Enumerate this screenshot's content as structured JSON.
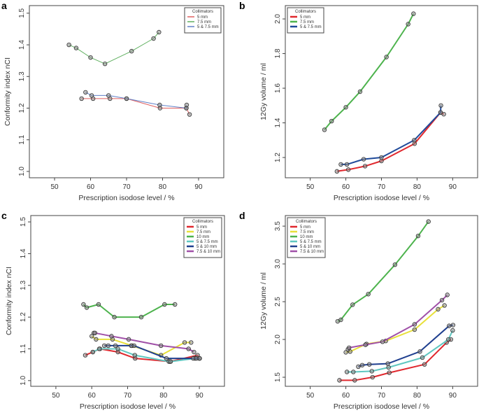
{
  "chart_data": [
    {
      "panel": "a",
      "type": "line",
      "xlabel": "Prescription isodose level / %",
      "ylabel": "Conformity index nCI",
      "xlim": [
        43,
        97
      ],
      "ylim": [
        0.98,
        1.524
      ],
      "xticks": [
        50,
        60,
        70,
        80,
        90
      ],
      "yticks": [
        1.0,
        1.1,
        1.2,
        1.3,
        1.4,
        1.5
      ],
      "ytick_labels": [
        "1.0",
        "1.1",
        "1.2",
        "1.3",
        "1.4",
        "1.5"
      ],
      "grid": false,
      "legend_title": "Collimators",
      "legend_position": "top-right",
      "series": [
        {
          "name": "5 mm",
          "color": "#e06060",
          "x": [
            57.5,
            60.7,
            65.4,
            70,
            79.3,
            86.6,
            87.5
          ],
          "y": [
            1.23,
            1.23,
            1.23,
            1.23,
            1.2,
            1.2,
            1.18
          ]
        },
        {
          "name": "7.5 mm",
          "color": "#60b060",
          "x": [
            54,
            56,
            60,
            64,
            71.4,
            77.5,
            79
          ],
          "y": [
            1.4,
            1.39,
            1.36,
            1.34,
            1.38,
            1.42,
            1.44
          ]
        },
        {
          "name": "5 & 7.5 mm",
          "color": "#6080c8",
          "x": [
            58.6,
            60.3,
            65,
            70,
            79.2,
            86.6,
            86.7
          ],
          "y": [
            1.25,
            1.24,
            1.24,
            1.23,
            1.21,
            1.2,
            1.21
          ]
        }
      ]
    },
    {
      "panel": "b",
      "type": "line",
      "xlabel": "Prescription isodose level / %",
      "ylabel": "12Gy volume / ml",
      "xlim": [
        43,
        97
      ],
      "ylim": [
        1.083,
        2.077
      ],
      "xticks": [
        50,
        60,
        70,
        80,
        90
      ],
      "yticks": [
        1.2,
        1.4,
        1.6,
        1.8,
        2.0
      ],
      "ytick_labels": [
        "1.2",
        "1.4",
        "1.6",
        "1.8",
        "2.0"
      ],
      "grid": false,
      "legend_title": "Collimators",
      "legend_position": "top-left",
      "series": [
        {
          "name": "5 mm",
          "color": "#e0282e",
          "x": [
            57.5,
            60.7,
            65.4,
            70,
            79.3,
            86.6,
            87.5
          ],
          "y": [
            1.12,
            1.13,
            1.15,
            1.18,
            1.28,
            1.46,
            1.45
          ]
        },
        {
          "name": "7.5 mm",
          "color": "#4db34d",
          "x": [
            54,
            56,
            60,
            64,
            71.4,
            77.5,
            79
          ],
          "y": [
            1.36,
            1.41,
            1.49,
            1.58,
            1.78,
            1.97,
            2.03
          ]
        },
        {
          "name": "5 & 7.5 mm",
          "color": "#1f4a9a",
          "x": [
            58.6,
            60.3,
            65,
            70,
            79.2,
            86.6,
            86.7
          ],
          "y": [
            1.16,
            1.16,
            1.19,
            1.2,
            1.3,
            1.46,
            1.5
          ]
        }
      ]
    },
    {
      "panel": "c",
      "type": "line",
      "xlabel": "Prescription isodose level / %",
      "ylabel": "Conformity index nCI",
      "xlim": [
        43,
        97
      ],
      "ylim": [
        0.982,
        1.52
      ],
      "xticks": [
        50,
        60,
        70,
        80,
        90
      ],
      "yticks": [
        1.0,
        1.1,
        1.2,
        1.3,
        1.4,
        1.5
      ],
      "ytick_labels": [
        "1.0",
        "1.1",
        "1.2",
        "1.3",
        "1.4",
        "1.5"
      ],
      "grid": false,
      "legend_title": "Collimators",
      "legend_position": "top-right",
      "series": [
        {
          "name": "5 mm",
          "color": "#e0282e",
          "x": [
            58.2,
            60.3,
            62.3,
            67.3,
            72.1,
            81.8,
            89.5,
            90
          ],
          "y": [
            1.08,
            1.09,
            1.1,
            1.09,
            1.07,
            1.06,
            1.08,
            1.07
          ]
        },
        {
          "name": "7.5 mm",
          "color": "#e8e03a",
          "x": [
            60,
            61.2,
            65.8,
            71.2,
            79.3,
            85.9,
            87.7
          ],
          "y": [
            1.14,
            1.13,
            1.13,
            1.11,
            1.08,
            1.12,
            1.12
          ]
        },
        {
          "name": "10 mm",
          "color": "#4db34d",
          "x": [
            57.7,
            58.6,
            61.9,
            66.3,
            73.8,
            80.3,
            83.2
          ],
          "y": [
            1.24,
            1.23,
            1.24,
            1.2,
            1.2,
            1.24,
            1.24
          ]
        },
        {
          "name": "5 & 7.5 mm",
          "color": "#5fc7c0",
          "x": [
            60.3,
            62.1,
            67.3,
            72,
            81.5,
            82,
            88.8,
            90
          ],
          "y": [
            1.09,
            1.1,
            1.1,
            1.08,
            1.06,
            1.06,
            1.07,
            1.07
          ]
        },
        {
          "name": "5 & 10 mm",
          "color": "#1f3f8f",
          "x": [
            63.5,
            64.6,
            66.6,
            71,
            71.8,
            80.8,
            88.3,
            89.2,
            90.1
          ],
          "y": [
            1.11,
            1.11,
            1.11,
            1.11,
            1.11,
            1.07,
            1.07,
            1.07,
            1.07
          ]
        },
        {
          "name": "7.5 & 10 mm",
          "color": "#a050a8",
          "x": [
            60.6,
            60.9,
            65.5,
            70.3,
            79.3,
            87,
            88.5
          ],
          "y": [
            1.15,
            1.15,
            1.14,
            1.13,
            1.11,
            1.1,
            1.09
          ]
        }
      ]
    },
    {
      "panel": "d",
      "type": "line",
      "xlabel": "Prescription isodose level / %",
      "ylabel": "12Gy volume / ml",
      "xlim": [
        43,
        97
      ],
      "ylim": [
        1.38,
        3.64
      ],
      "xticks": [
        50,
        60,
        70,
        80,
        90
      ],
      "yticks": [
        1.5,
        2.0,
        2.5,
        3.0,
        3.5
      ],
      "ytick_labels": [
        "1.5",
        "2.0",
        "2.5",
        "3.0",
        "3.5"
      ],
      "grid": false,
      "legend_title": "Collimators",
      "legend_position": "top-left",
      "series": [
        {
          "name": "5 mm",
          "color": "#e0282e",
          "x": [
            58.2,
            62.5,
            67.5,
            72.2,
            82.1,
            88.3,
            89.5
          ],
          "y": [
            1.46,
            1.46,
            1.5,
            1.56,
            1.67,
            1.96,
            2.0
          ]
        },
        {
          "name": "7.5 mm",
          "color": "#e8e03a",
          "x": [
            60,
            61.2,
            65.8,
            71.2,
            79.3,
            85.9,
            87.7
          ],
          "y": [
            1.83,
            1.84,
            1.94,
            1.98,
            2.13,
            2.4,
            2.45
          ]
        },
        {
          "name": "10 mm",
          "color": "#4db34d",
          "x": [
            57.7,
            58.6,
            61.9,
            66.3,
            73.8,
            80.3,
            83.2
          ],
          "y": [
            2.24,
            2.26,
            2.46,
            2.6,
            2.99,
            3.37,
            3.56
          ]
        },
        {
          "name": "5 & 7.5 mm",
          "color": "#5fc7c0",
          "x": [
            60.3,
            62.1,
            67.3,
            72,
            81.5,
            88.8,
            90
          ],
          "y": [
            1.57,
            1.57,
            1.58,
            1.63,
            1.76,
            2.0,
            2.12
          ]
        },
        {
          "name": "5 & 10 mm",
          "color": "#1f3f8f",
          "x": [
            63.5,
            64.6,
            66.6,
            71.8,
            80.8,
            89,
            90.1
          ],
          "y": [
            1.64,
            1.66,
            1.67,
            1.68,
            1.84,
            2.18,
            2.19
          ]
        },
        {
          "name": "7.5 & 10 mm",
          "color": "#a050a8",
          "x": [
            60.6,
            60.9,
            65.5,
            70.3,
            79.3,
            87,
            88.5
          ],
          "y": [
            1.87,
            1.89,
            1.93,
            1.97,
            2.2,
            2.52,
            2.59
          ]
        }
      ]
    }
  ]
}
